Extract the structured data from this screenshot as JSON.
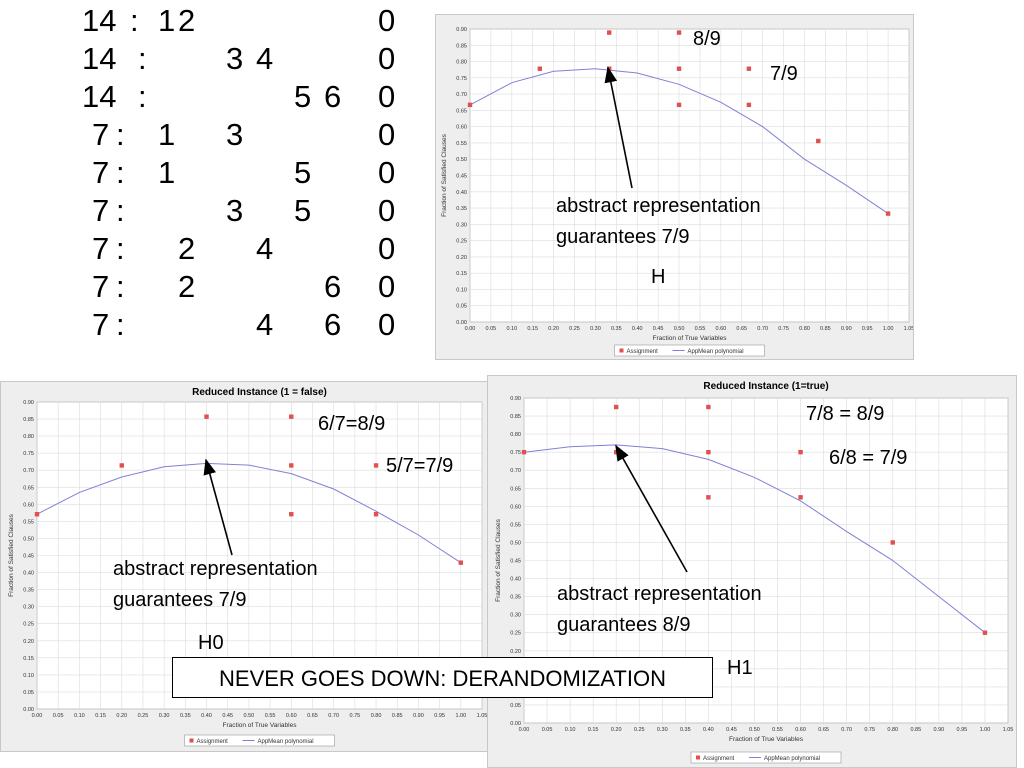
{
  "clauses": {
    "rows": [
      {
        "weight": "14",
        "literals": [
          "1",
          "2",
          "",
          "",
          "",
          ""
        ],
        "end": "0"
      },
      {
        "weight": "14",
        "literals": [
          "",
          "",
          "3",
          "4",
          "",
          ""
        ],
        "end": "0"
      },
      {
        "weight": "14",
        "literals": [
          "",
          "",
          "",
          "",
          "5",
          "6"
        ],
        "end": "0"
      },
      {
        "weight": "7",
        "literals": [
          "1",
          "",
          "3",
          "",
          "",
          ""
        ],
        "end": "0"
      },
      {
        "weight": "7",
        "literals": [
          "1",
          "",
          "",
          "",
          "5",
          ""
        ],
        "end": "0"
      },
      {
        "weight": "7",
        "literals": [
          "",
          "",
          "3",
          "",
          "5",
          ""
        ],
        "end": "0"
      },
      {
        "weight": "7",
        "literals": [
          "",
          "2",
          "",
          "4",
          "",
          ""
        ],
        "end": "0"
      },
      {
        "weight": "7",
        "literals": [
          "",
          "2",
          "",
          "",
          "",
          "6"
        ],
        "end": "0"
      },
      {
        "weight": "7",
        "literals": [
          "",
          "",
          "",
          "4",
          "",
          "6"
        ],
        "end": "0"
      }
    ],
    "separator": ":"
  },
  "annotations": {
    "top": {
      "labels": [
        "8/9",
        "7/9"
      ],
      "note_line1": "abstract representation",
      "note_line2": "guarantees 7/9",
      "name": "H"
    },
    "h0": {
      "labels": [
        "6/7=8/9",
        "5/7=7/9"
      ],
      "note_line1": "abstract representation",
      "note_line2": "guarantees 7/9",
      "name": "H0"
    },
    "h1": {
      "labels": [
        "7/8 = 8/9",
        "6/8 = 7/9"
      ],
      "note_line1": "abstract representation",
      "note_line2": "guarantees 8/9",
      "name": "H1"
    },
    "banner": "NEVER GOES DOWN: DERANDOMIZATION"
  },
  "chart_data": [
    {
      "type": "scatter",
      "title": "",
      "xlabel": "Fraction of True Variables",
      "ylabel": "Fraction of Satisfied Clauses",
      "xlim": [
        0,
        1.05
      ],
      "ylim": [
        0,
        0.9
      ],
      "ystep": 0.05,
      "legend": [
        "Assignment",
        "AppMean polynomial"
      ],
      "points": [
        [
          0.0,
          0.667
        ],
        [
          0.167,
          0.778
        ],
        [
          0.333,
          0.889
        ],
        [
          0.333,
          0.778
        ],
        [
          0.5,
          0.889
        ],
        [
          0.5,
          0.778
        ],
        [
          0.5,
          0.667
        ],
        [
          0.667,
          0.778
        ],
        [
          0.667,
          0.667
        ],
        [
          0.833,
          0.556
        ],
        [
          1.0,
          0.333
        ]
      ],
      "curve": [
        [
          0.0,
          0.667
        ],
        [
          0.1,
          0.735
        ],
        [
          0.2,
          0.77
        ],
        [
          0.3,
          0.778
        ],
        [
          0.4,
          0.765
        ],
        [
          0.5,
          0.73
        ],
        [
          0.6,
          0.675
        ],
        [
          0.7,
          0.6
        ],
        [
          0.8,
          0.5
        ],
        [
          0.9,
          0.42
        ],
        [
          1.0,
          0.333
        ]
      ],
      "grid": true
    },
    {
      "type": "scatter",
      "title": "Reduced Instance (1 = false)",
      "xlabel": "Fraction of True Variables",
      "ylabel": "Fraction of Satisfied Clauses",
      "xlim": [
        0,
        1.05
      ],
      "ylim": [
        0,
        0.9
      ],
      "ystep": 0.05,
      "legend": [
        "Assignment",
        "AppMean polynomial"
      ],
      "points": [
        [
          0.0,
          0.571
        ],
        [
          0.2,
          0.714
        ],
        [
          0.4,
          0.857
        ],
        [
          0.6,
          0.857
        ],
        [
          0.6,
          0.714
        ],
        [
          0.6,
          0.571
        ],
        [
          0.8,
          0.714
        ],
        [
          0.8,
          0.571
        ],
        [
          1.0,
          0.429
        ]
      ],
      "curve": [
        [
          0.0,
          0.571
        ],
        [
          0.1,
          0.635
        ],
        [
          0.2,
          0.68
        ],
        [
          0.3,
          0.71
        ],
        [
          0.4,
          0.72
        ],
        [
          0.5,
          0.715
        ],
        [
          0.6,
          0.69
        ],
        [
          0.7,
          0.645
        ],
        [
          0.8,
          0.58
        ],
        [
          0.9,
          0.51
        ],
        [
          1.0,
          0.429
        ]
      ],
      "grid": true
    },
    {
      "type": "scatter",
      "title": "Reduced Instance (1=true)",
      "xlabel": "Fraction of True Variables",
      "ylabel": "Fraction of Satisfied Clauses",
      "xlim": [
        0,
        1.05
      ],
      "ylim": [
        0,
        0.9
      ],
      "ystep": 0.05,
      "legend": [
        "Assignment",
        "AppMean polynomial"
      ],
      "points": [
        [
          0.0,
          0.75
        ],
        [
          0.2,
          0.875
        ],
        [
          0.2,
          0.75
        ],
        [
          0.4,
          0.875
        ],
        [
          0.4,
          0.75
        ],
        [
          0.4,
          0.625
        ],
        [
          0.6,
          0.75
        ],
        [
          0.6,
          0.625
        ],
        [
          0.8,
          0.5
        ],
        [
          1.0,
          0.25
        ]
      ],
      "curve": [
        [
          0.0,
          0.75
        ],
        [
          0.1,
          0.765
        ],
        [
          0.2,
          0.77
        ],
        [
          0.3,
          0.76
        ],
        [
          0.4,
          0.73
        ],
        [
          0.5,
          0.68
        ],
        [
          0.6,
          0.615
        ],
        [
          0.7,
          0.53
        ],
        [
          0.8,
          0.45
        ],
        [
          0.9,
          0.35
        ],
        [
          1.0,
          0.25
        ]
      ],
      "grid": true
    }
  ],
  "colors": {
    "point": "#e05050",
    "curve": "#8080d8",
    "plot_bg": "#ffffff",
    "frame_bg": "#eeeeee",
    "grid": "#dcdcdc",
    "arrow": "#000000"
  }
}
